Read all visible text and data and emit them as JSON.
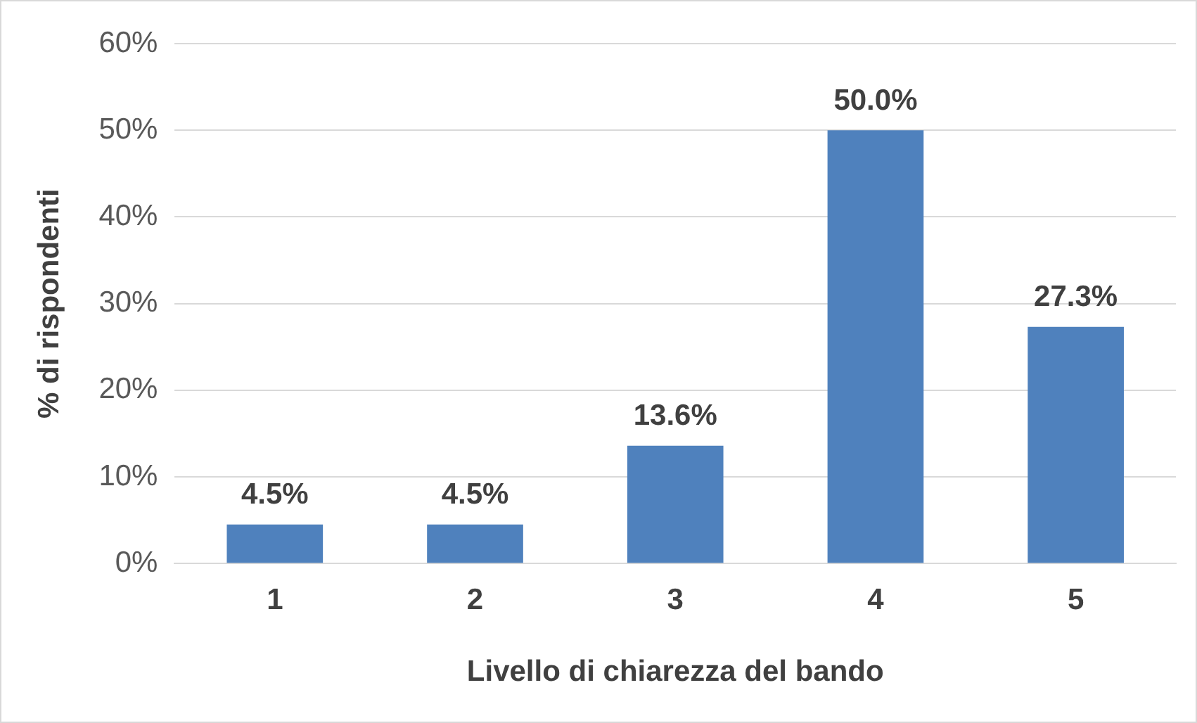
{
  "chart_data": {
    "type": "bar",
    "xlabel": "Livello di chiarezza del bando",
    "ylabel": "% di rispondenti",
    "categories": [
      "1",
      "2",
      "3",
      "4",
      "5"
    ],
    "values": [
      4.5,
      4.5,
      13.6,
      50.0,
      27.3
    ],
    "value_labels": [
      "4.5%",
      "4.5%",
      "13.6%",
      "50.0%",
      "27.3%"
    ],
    "color": "#4f81bd",
    "ylim": [
      0,
      60
    ],
    "yticks": [
      {
        "value": 0,
        "label": "0%"
      },
      {
        "value": 10,
        "label": "10%"
      },
      {
        "value": 20,
        "label": "20%"
      },
      {
        "value": 30,
        "label": "30%"
      },
      {
        "value": 40,
        "label": "40%"
      },
      {
        "value": 50,
        "label": "50%"
      },
      {
        "value": 60,
        "label": "60%"
      }
    ],
    "grid": "y",
    "legend": false
  }
}
